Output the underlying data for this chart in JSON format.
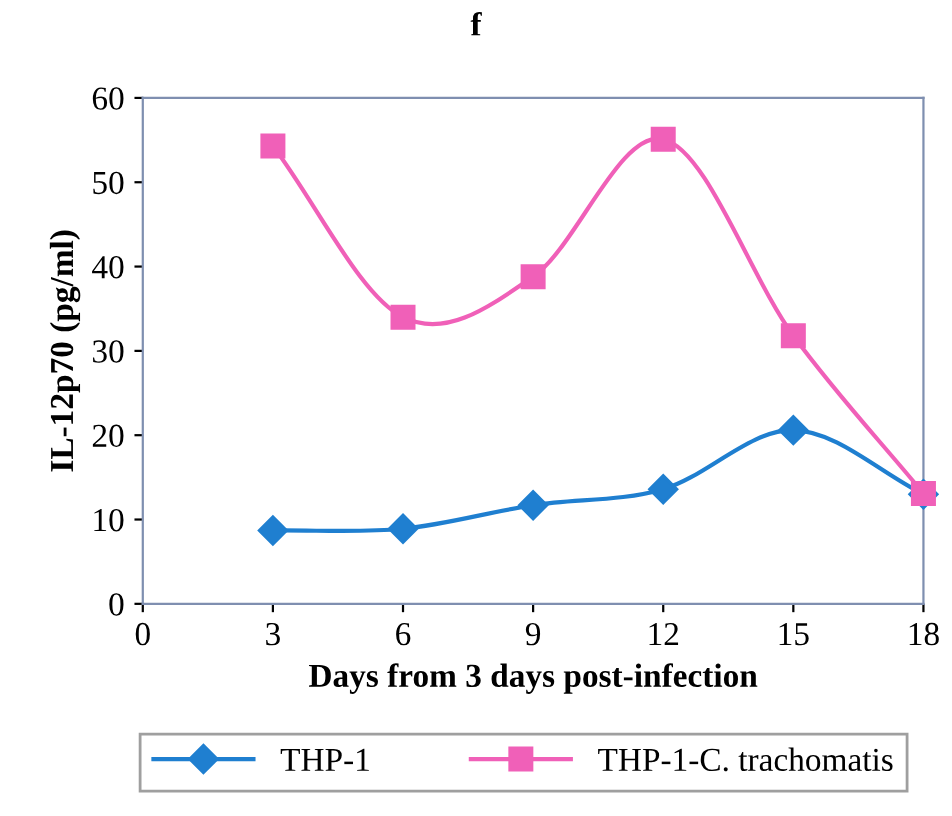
{
  "chart_data": {
    "type": "line",
    "title": "f",
    "xlabel": "Days from 3 days post-infection",
    "ylabel": "IL-12p70 (pg/ml)",
    "x": [
      3,
      6,
      9,
      12,
      15,
      18
    ],
    "series": [
      {
        "name": "THP-1",
        "color": "#1f7fd0",
        "marker": "diamond",
        "values": [
          8.7,
          8.9,
          11.7,
          13.6,
          20.6,
          13
        ]
      },
      {
        "name": "THP-1-C. trachomatis",
        "color": "#f060b8",
        "marker": "square",
        "values": [
          54.3,
          34,
          38.8,
          55.1,
          31.8,
          13.1
        ]
      }
    ],
    "xlim": [
      0,
      18
    ],
    "xticks": [
      0,
      3,
      6,
      9,
      12,
      15,
      18
    ],
    "ylim": [
      0,
      60
    ],
    "yticks": [
      0,
      10,
      20,
      30,
      40,
      50,
      60
    ],
    "grid": false,
    "legend": "bottom",
    "line_style": "solid"
  }
}
